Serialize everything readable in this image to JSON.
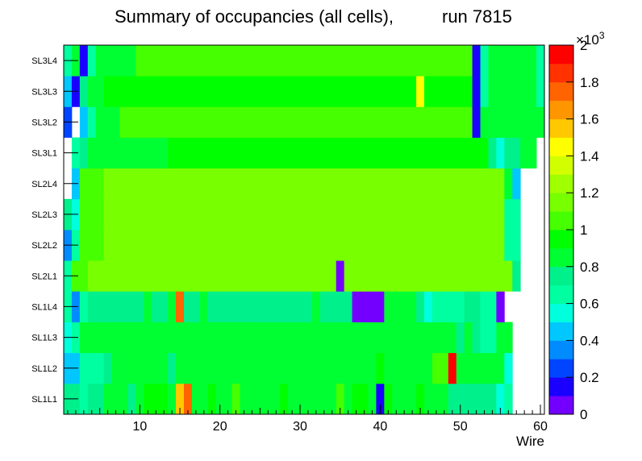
{
  "chart_data": {
    "type": "heatmap",
    "title": "Summary of occupancies (all cells),",
    "run_label": "run 7815",
    "xlabel": "Wire",
    "x_ticks": [
      10,
      20,
      30,
      40,
      50,
      60
    ],
    "x_range": [
      0.5,
      60.5
    ],
    "rows": [
      "SL1L1",
      "SL1L2",
      "SL1L3",
      "SL1L4",
      "SL2L1",
      "SL2L2",
      "SL2L3",
      "SL2L4",
      "SL3L1",
      "SL3L2",
      "SL3L3",
      "SL3L4"
    ],
    "colorbar": {
      "exponent_label": "×10",
      "exponent_power": "3",
      "range": [
        0,
        2000
      ],
      "tick_labels": [
        "0",
        "0.2",
        "0.4",
        "0.6",
        "0.8",
        "1",
        "1.2",
        "1.4",
        "1.6",
        "1.8",
        "2"
      ],
      "palette": [
        "#7300ff",
        "#1a00ff",
        "#0045ff",
        "#008cff",
        "#00c8ff",
        "#00ffdc",
        "#00ffa0",
        "#00f08c",
        "#00ff32",
        "#00ff00",
        "#46ff00",
        "#78ff00",
        "#a0ff00",
        "#d2ff00",
        "#ffff00",
        "#ffc800",
        "#ff9600",
        "#ff6400",
        "#ff3200",
        "#ff0000"
      ]
    },
    "z_values": [
      [
        760,
        760,
        650,
        760,
        760,
        880,
        880,
        880,
        760,
        880,
        980,
        900,
        900,
        860,
        1560,
        1740,
        880,
        860,
        980,
        860,
        880,
        1000,
        880,
        880,
        860,
        860,
        880,
        980,
        860,
        860,
        880,
        860,
        860,
        880,
        1060,
        860,
        980,
        980,
        860,
        140,
        980,
        880,
        880,
        860,
        980,
        860,
        860,
        860,
        760,
        760,
        760,
        760,
        760,
        760,
        560,
        660,
        null,
        null,
        null,
        null
      ],
      [
        400,
        480,
        600,
        660,
        660,
        760,
        860,
        860,
        860,
        860,
        860,
        860,
        860,
        760,
        860,
        860,
        880,
        880,
        880,
        880,
        880,
        880,
        880,
        880,
        880,
        880,
        880,
        880,
        880,
        880,
        880,
        880,
        860,
        860,
        860,
        860,
        860,
        860,
        860,
        980,
        860,
        860,
        860,
        860,
        880,
        880,
        1000,
        1000,
        1900,
        880,
        880,
        880,
        860,
        860,
        860,
        550,
        null,
        null,
        null,
        null
      ],
      [
        500,
        600,
        880,
        880,
        860,
        860,
        860,
        880,
        860,
        880,
        880,
        880,
        880,
        880,
        880,
        880,
        880,
        880,
        880,
        880,
        880,
        880,
        880,
        880,
        880,
        880,
        880,
        880,
        880,
        880,
        880,
        880,
        880,
        880,
        880,
        880,
        880,
        880,
        880,
        880,
        880,
        880,
        880,
        880,
        880,
        880,
        880,
        880,
        860,
        760,
        880,
        760,
        660,
        650,
        880,
        880,
        null,
        null,
        null,
        null
      ],
      [
        600,
        320,
        650,
        760,
        760,
        760,
        760,
        760,
        760,
        760,
        880,
        760,
        760,
        880,
        1740,
        760,
        760,
        880,
        760,
        760,
        760,
        760,
        760,
        760,
        760,
        760,
        760,
        760,
        760,
        760,
        760,
        880,
        760,
        760,
        760,
        760,
        40,
        40,
        40,
        40,
        880,
        880,
        860,
        880,
        760,
        550,
        660,
        660,
        660,
        660,
        760,
        760,
        660,
        660,
        90,
        null,
        null,
        null,
        null,
        null
      ],
      [
        660,
        1000,
        1000,
        1100,
        1100,
        1100,
        1100,
        1100,
        1100,
        1100,
        1100,
        1100,
        1100,
        1100,
        1100,
        1100,
        1100,
        1100,
        1100,
        1100,
        1100,
        1100,
        1100,
        1100,
        1100,
        1100,
        1100,
        1100,
        1100,
        1100,
        1100,
        1100,
        1100,
        1100,
        40,
        1100,
        1100,
        1100,
        1100,
        1100,
        1100,
        1100,
        1100,
        1100,
        1100,
        1100,
        1100,
        1100,
        1100,
        1100,
        1100,
        1100,
        1100,
        1100,
        1100,
        1100,
        760,
        null,
        null,
        null
      ],
      [
        350,
        600,
        1000,
        1000,
        1000,
        1100,
        1100,
        1100,
        1100,
        1100,
        1100,
        1100,
        1100,
        1100,
        1100,
        1100,
        1100,
        1100,
        1100,
        1100,
        1100,
        1100,
        1100,
        1100,
        1100,
        1100,
        1100,
        1100,
        1100,
        1100,
        1100,
        1100,
        1100,
        1100,
        1100,
        1100,
        1100,
        1100,
        1100,
        1100,
        1100,
        1100,
        1100,
        1100,
        1100,
        1100,
        1100,
        1100,
        1100,
        1100,
        1100,
        1100,
        1100,
        1100,
        1100,
        660,
        600,
        null,
        null,
        null
      ],
      [
        700,
        560,
        1000,
        1000,
        1000,
        1100,
        1100,
        1100,
        1100,
        1100,
        1100,
        1100,
        1100,
        1100,
        1100,
        1100,
        1100,
        1100,
        1100,
        1100,
        1100,
        1100,
        1100,
        1100,
        1100,
        1100,
        1100,
        1100,
        1100,
        1100,
        1100,
        1100,
        1100,
        1100,
        1100,
        1100,
        1100,
        1100,
        1100,
        1100,
        1100,
        1100,
        1100,
        1100,
        1100,
        1100,
        1100,
        1100,
        1100,
        1100,
        1100,
        1100,
        1100,
        1100,
        1100,
        600,
        660,
        null,
        null,
        null
      ],
      [
        null,
        450,
        1000,
        1000,
        1000,
        1100,
        1100,
        1100,
        1100,
        1100,
        1100,
        1100,
        1100,
        1100,
        1100,
        1100,
        1100,
        1100,
        1100,
        1100,
        1100,
        1100,
        1100,
        1100,
        1100,
        1100,
        1100,
        1100,
        1100,
        1100,
        1100,
        1100,
        1100,
        1100,
        1100,
        1100,
        1100,
        1100,
        1100,
        1100,
        1100,
        1100,
        1100,
        1100,
        1100,
        1100,
        1100,
        1100,
        1100,
        1100,
        1100,
        1100,
        1100,
        1100,
        1100,
        880,
        400,
        null,
        null,
        null
      ],
      [
        null,
        660,
        760,
        880,
        880,
        860,
        860,
        880,
        880,
        880,
        860,
        880,
        880,
        980,
        980,
        980,
        980,
        980,
        980,
        980,
        980,
        980,
        980,
        980,
        980,
        980,
        980,
        980,
        980,
        980,
        980,
        980,
        980,
        980,
        980,
        980,
        980,
        980,
        980,
        980,
        980,
        980,
        980,
        980,
        980,
        980,
        980,
        980,
        980,
        980,
        980,
        980,
        980,
        760,
        500,
        760,
        760,
        880,
        880,
        null
      ],
      [
        200,
        null,
        400,
        600,
        880,
        880,
        880,
        1000,
        1000,
        1000,
        1000,
        1000,
        1000,
        1000,
        1000,
        1000,
        1000,
        1000,
        1000,
        1000,
        1000,
        1000,
        1000,
        1000,
        1000,
        1000,
        1000,
        1000,
        1000,
        1000,
        1000,
        1000,
        1000,
        1000,
        1000,
        1000,
        1000,
        1000,
        1000,
        1000,
        1000,
        1000,
        1000,
        1000,
        1000,
        1000,
        1000,
        1000,
        1000,
        1000,
        1000,
        120,
        880,
        880,
        880,
        880,
        880,
        880,
        880,
        880
      ],
      [
        400,
        120,
        760,
        880,
        880,
        980,
        980,
        980,
        980,
        980,
        980,
        980,
        980,
        980,
        980,
        980,
        980,
        980,
        980,
        980,
        980,
        980,
        980,
        980,
        980,
        980,
        980,
        980,
        980,
        980,
        980,
        980,
        980,
        980,
        980,
        980,
        980,
        980,
        980,
        980,
        980,
        980,
        980,
        980,
        1400,
        980,
        980,
        980,
        980,
        980,
        980,
        120,
        600,
        880,
        880,
        880,
        880,
        880,
        880,
        600
      ],
      [
        660,
        880,
        120,
        600,
        880,
        880,
        880,
        880,
        880,
        1000,
        1000,
        1000,
        1000,
        1000,
        1000,
        1000,
        1000,
        1000,
        1000,
        1000,
        1000,
        1000,
        1000,
        1000,
        1000,
        1000,
        1000,
        1000,
        1000,
        1000,
        1000,
        1000,
        1000,
        1000,
        1000,
        1000,
        1000,
        1000,
        1000,
        1000,
        1000,
        1000,
        1000,
        1000,
        1000,
        1000,
        1000,
        1000,
        1000,
        1000,
        1000,
        120,
        660,
        880,
        880,
        880,
        880,
        880,
        880,
        600
      ]
    ]
  }
}
